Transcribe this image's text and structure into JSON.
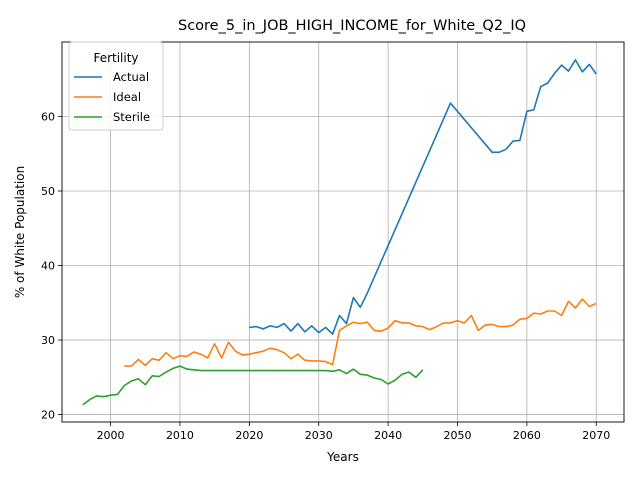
{
  "chart_data": {
    "type": "line",
    "title": "Score_5_in_JOB_HIGH_INCOME_for_White_Q2_IQ",
    "xlabel": "Years",
    "ylabel": "% of White Population",
    "xlim": [
      1993,
      2074
    ],
    "ylim": [
      19,
      70
    ],
    "xticks": [
      2000,
      2010,
      2020,
      2030,
      2040,
      2050,
      2060,
      2070
    ],
    "yticks": [
      20,
      30,
      40,
      50,
      60
    ],
    "grid": true,
    "legend": {
      "title": "Fertility",
      "placement": "top-left"
    },
    "series": [
      {
        "name": "Actual",
        "color": "#1f77b4",
        "points": [
          [
            2020,
            31.7
          ],
          [
            2021,
            31.8
          ],
          [
            2022,
            31.5
          ],
          [
            2023,
            31.9
          ],
          [
            2024,
            31.7
          ],
          [
            2025,
            32.2
          ],
          [
            2026,
            31.2
          ],
          [
            2027,
            32.2
          ],
          [
            2028,
            31.1
          ],
          [
            2029,
            31.9
          ],
          [
            2030,
            31.0
          ],
          [
            2031,
            31.7
          ],
          [
            2032,
            30.8
          ],
          [
            2033,
            33.3
          ],
          [
            2034,
            32.2
          ],
          [
            2035,
            35.7
          ],
          [
            2036,
            34.4
          ],
          [
            2037,
            36.3
          ],
          [
            2049,
            61.8
          ],
          [
            2055,
            55.2
          ],
          [
            2056,
            55.2
          ],
          [
            2057,
            55.6
          ],
          [
            2058,
            56.7
          ],
          [
            2059,
            56.8
          ],
          [
            2060,
            60.7
          ],
          [
            2061,
            60.9
          ],
          [
            2062,
            64.0
          ],
          [
            2063,
            64.5
          ],
          [
            2064,
            65.8
          ],
          [
            2065,
            66.9
          ],
          [
            2066,
            66.1
          ],
          [
            2067,
            67.6
          ],
          [
            2068,
            66.0
          ],
          [
            2069,
            67.0
          ],
          [
            2070,
            65.7
          ]
        ]
      },
      {
        "name": "Ideal",
        "color": "#ff7f0e",
        "points": [
          [
            2002,
            26.5
          ],
          [
            2003,
            26.5
          ],
          [
            2004,
            27.4
          ],
          [
            2005,
            26.6
          ],
          [
            2006,
            27.5
          ],
          [
            2007,
            27.3
          ],
          [
            2008,
            28.3
          ],
          [
            2009,
            27.5
          ],
          [
            2010,
            27.9
          ],
          [
            2011,
            27.8
          ],
          [
            2012,
            28.4
          ],
          [
            2013,
            28.1
          ],
          [
            2014,
            27.6
          ],
          [
            2015,
            29.5
          ],
          [
            2016,
            27.6
          ],
          [
            2017,
            29.7
          ],
          [
            2018,
            28.5
          ],
          [
            2019,
            28.0
          ],
          [
            2020,
            28.1
          ],
          [
            2021,
            28.3
          ],
          [
            2022,
            28.5
          ],
          [
            2023,
            28.9
          ],
          [
            2024,
            28.7
          ],
          [
            2025,
            28.3
          ],
          [
            2026,
            27.5
          ],
          [
            2027,
            28.1
          ],
          [
            2028,
            27.3
          ],
          [
            2029,
            27.2
          ],
          [
            2030,
            27.2
          ],
          [
            2031,
            27.1
          ],
          [
            2032,
            26.7
          ],
          [
            2033,
            31.3
          ],
          [
            2034,
            31.9
          ],
          [
            2035,
            32.4
          ],
          [
            2036,
            32.2
          ],
          [
            2037,
            32.4
          ],
          [
            2038,
            31.3
          ],
          [
            2039,
            31.2
          ],
          [
            2040,
            31.6
          ],
          [
            2041,
            32.6
          ],
          [
            2042,
            32.3
          ],
          [
            2043,
            32.3
          ],
          [
            2044,
            31.9
          ],
          [
            2045,
            31.8
          ],
          [
            2046,
            31.4
          ],
          [
            2047,
            31.8
          ],
          [
            2048,
            32.3
          ],
          [
            2049,
            32.3
          ],
          [
            2050,
            32.6
          ],
          [
            2051,
            32.3
          ],
          [
            2052,
            33.3
          ],
          [
            2053,
            31.3
          ],
          [
            2054,
            32.0
          ],
          [
            2055,
            32.1
          ],
          [
            2056,
            31.8
          ],
          [
            2057,
            31.8
          ],
          [
            2058,
            32.0
          ],
          [
            2059,
            32.8
          ],
          [
            2060,
            32.9
          ],
          [
            2061,
            33.6
          ],
          [
            2062,
            33.5
          ],
          [
            2063,
            33.9
          ],
          [
            2064,
            33.9
          ],
          [
            2065,
            33.3
          ],
          [
            2066,
            35.2
          ],
          [
            2067,
            34.3
          ],
          [
            2068,
            35.5
          ],
          [
            2069,
            34.5
          ],
          [
            2070,
            34.9
          ]
        ]
      },
      {
        "name": "Sterile",
        "color": "#2ca02c",
        "points": [
          [
            1996,
            21.3
          ],
          [
            1997,
            22.0
          ],
          [
            1998,
            22.5
          ],
          [
            1999,
            22.4
          ],
          [
            2000,
            22.6
          ],
          [
            2001,
            22.7
          ],
          [
            2002,
            23.9
          ],
          [
            2003,
            24.5
          ],
          [
            2004,
            24.8
          ],
          [
            2005,
            24.0
          ],
          [
            2006,
            25.2
          ],
          [
            2007,
            25.1
          ],
          [
            2008,
            25.7
          ],
          [
            2009,
            26.2
          ],
          [
            2010,
            26.5
          ],
          [
            2011,
            26.1
          ],
          [
            2012,
            26.0
          ],
          [
            2013,
            25.9
          ],
          [
            2014,
            25.9
          ],
          [
            2015,
            25.9
          ],
          [
            2016,
            25.9
          ],
          [
            2017,
            25.9
          ],
          [
            2018,
            25.9
          ],
          [
            2019,
            25.9
          ],
          [
            2020,
            25.9
          ],
          [
            2021,
            25.9
          ],
          [
            2022,
            25.9
          ],
          [
            2023,
            25.9
          ],
          [
            2024,
            25.9
          ],
          [
            2025,
            25.9
          ],
          [
            2026,
            25.9
          ],
          [
            2027,
            25.9
          ],
          [
            2028,
            25.9
          ],
          [
            2029,
            25.9
          ],
          [
            2030,
            25.9
          ],
          [
            2031,
            25.9
          ],
          [
            2032,
            25.8
          ],
          [
            2033,
            26.0
          ],
          [
            2034,
            25.5
          ],
          [
            2035,
            26.1
          ],
          [
            2036,
            25.4
          ],
          [
            2037,
            25.3
          ],
          [
            2038,
            24.9
          ],
          [
            2039,
            24.7
          ],
          [
            2040,
            24.1
          ],
          [
            2041,
            24.6
          ],
          [
            2042,
            25.4
          ],
          [
            2043,
            25.7
          ],
          [
            2044,
            25.0
          ],
          [
            2045,
            26.0
          ]
        ]
      }
    ]
  }
}
